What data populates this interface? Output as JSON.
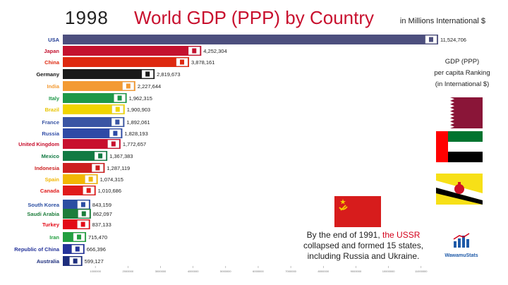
{
  "header": {
    "year": "1998",
    "title": "World GDP (PPP) by Country",
    "unit": "in Millions International $"
  },
  "per_capita": {
    "caption_line1": "GDP (PPP)",
    "caption_line2": "per capita Ranking",
    "caption_line3": "(in International $)",
    "flags": [
      "qatar-flag",
      "uae-flag",
      "brunei-flag"
    ]
  },
  "note": {
    "pre": "By the end of 1991, ",
    "highlight": "the USSR",
    "post": " collapsed and formed 15 states, including Russia and Ukraine."
  },
  "logo": {
    "text": "WawamuStats"
  },
  "colors": {
    "title": "#c8102e",
    "ussr_red": "#d71c1c",
    "logo_blue": "#1e5aa8"
  },
  "chart_data": {
    "type": "bar",
    "orientation": "horizontal",
    "xlim": [
      0,
      12500000
    ],
    "x_ticks": [
      "1000000",
      "2000000",
      "3000000",
      "4000000",
      "5000000",
      "6000000",
      "7000000",
      "8000000",
      "9000000",
      "10000000",
      "11000000"
    ],
    "categories": [
      "USA",
      "Japan",
      "China",
      "Germany",
      "India",
      "Italy",
      "Brazil",
      "France",
      "Russia",
      "United Kingdom",
      "Mexico",
      "Indonesia",
      "Spain",
      "Canada",
      "South Korea",
      "Saudi Arabia",
      "Turkey",
      "Iran",
      "Republic of China",
      "Australia"
    ],
    "values": [
      11524706,
      4252304,
      3878161,
      2819673,
      2227644,
      1962315,
      1900903,
      1892061,
      1828193,
      1772657,
      1367383,
      1287119,
      1074315,
      1010686,
      843159,
      862097,
      837133,
      715470,
      666396,
      599127
    ],
    "value_labels": [
      "11,524,706",
      "4,252,304",
      "3,878,161",
      "2,819,673",
      "2,227,644",
      "1,962,315",
      "1,900,903",
      "1,892,061",
      "1,828,193",
      "1,772,657",
      "1,367,383",
      "1,287,119",
      "1,074,315",
      "1,010,686",
      "843,159",
      "862,097",
      "837,133",
      "715,470",
      "666,396",
      "599,127"
    ],
    "bar_colors": [
      "#4d4f7e",
      "#c4122f",
      "#de2910",
      "#1a1a1a",
      "#f39a33",
      "#1e9848",
      "#f0d400",
      "#3a55a4",
      "#2e4aa6",
      "#c8102e",
      "#127a43",
      "#cc1f1f",
      "#f2b705",
      "#e01b1b",
      "#2b4ea2",
      "#1d7d3b",
      "#e30a17",
      "#239f40",
      "#24339a",
      "#1d2e7d"
    ],
    "label_colors": [
      "#1f3a93",
      "#c4122f",
      "#de2910",
      "#111111",
      "#f39a33",
      "#1e9848",
      "#e8c400",
      "#3a55a4",
      "#2e4aa6",
      "#c8102e",
      "#127a43",
      "#cc1f1f",
      "#f2b705",
      "#e01b1b",
      "#2b4ea2",
      "#1d7d3b",
      "#e30a17",
      "#239f40",
      "#24339a",
      "#1d2e7d"
    ]
  }
}
